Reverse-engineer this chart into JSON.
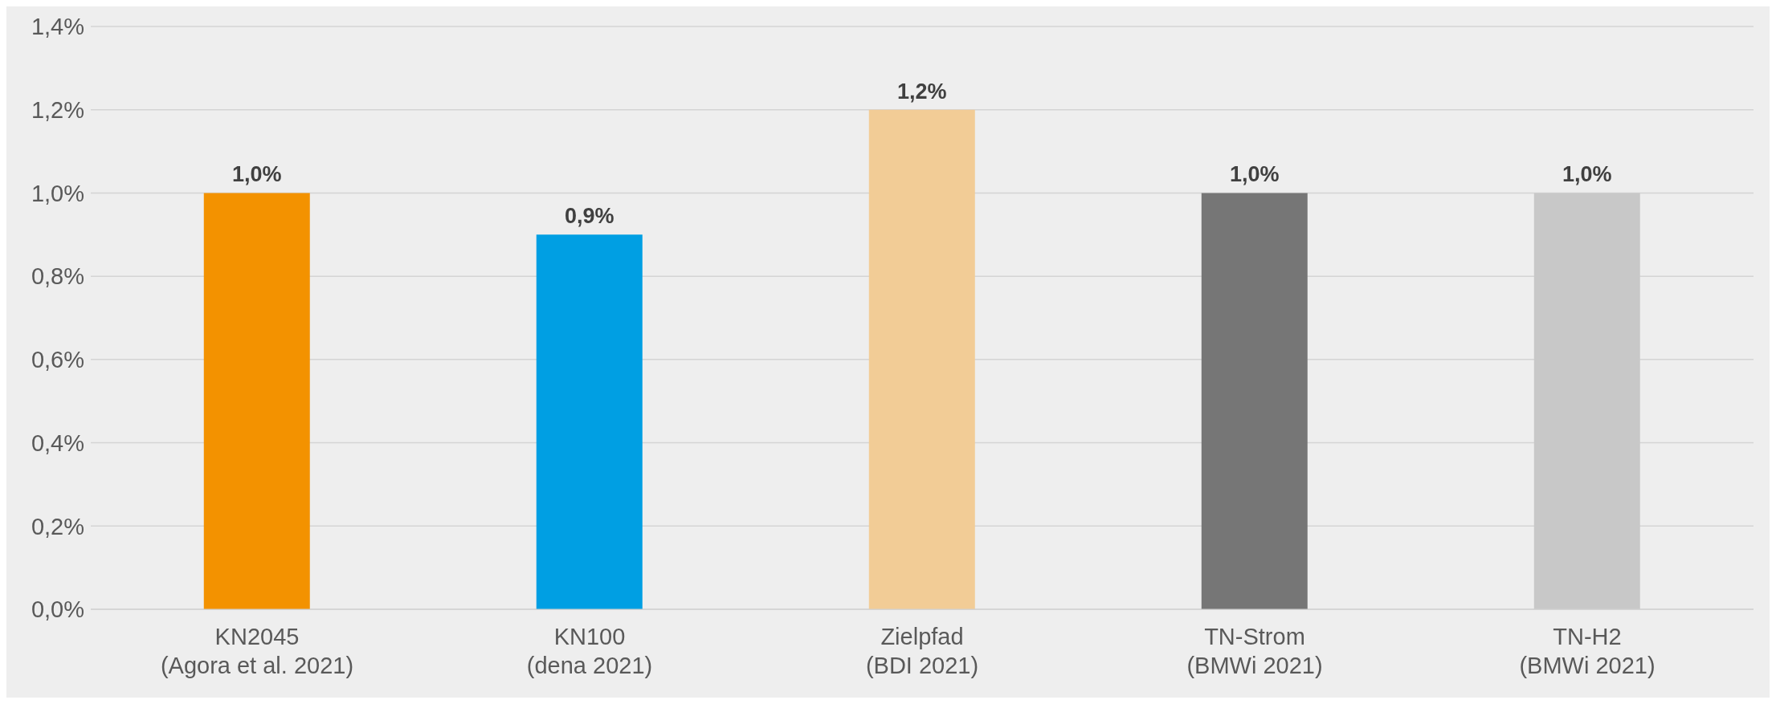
{
  "chart_data": {
    "type": "bar",
    "categories": [
      "KN2045\n(Agora et al. 2021)",
      "KN100\n(dena 2021)",
      "Zielpfad\n(BDI 2021)",
      "TN-Strom\n(BMWi 2021)",
      "TN-H2\n(BMWi 2021)"
    ],
    "values": [
      1.0,
      0.9,
      1.2,
      1.0,
      1.0
    ],
    "colors": [
      "#f39200",
      "#009fe3",
      "#f2cc96",
      "#767676",
      "#c8c8c8"
    ],
    "value_labels": [
      "1,0%",
      "0,9%",
      "1,2%",
      "1,0%",
      "1,0%"
    ],
    "ylim": [
      0,
      1.4
    ],
    "yticks": [
      {
        "value": 0,
        "label": "0,0%"
      },
      {
        "value": 0.2,
        "label": "0,2%"
      },
      {
        "value": 0.4,
        "label": "0,4%"
      },
      {
        "value": 0.6,
        "label": "0,6%"
      },
      {
        "value": 0.8,
        "label": "0,8%"
      },
      {
        "value": 1.0,
        "label": "1,0%"
      },
      {
        "value": 1.2,
        "label": "1,2%"
      },
      {
        "value": 1.4,
        "label": "1,4%"
      }
    ],
    "grid": "y"
  }
}
